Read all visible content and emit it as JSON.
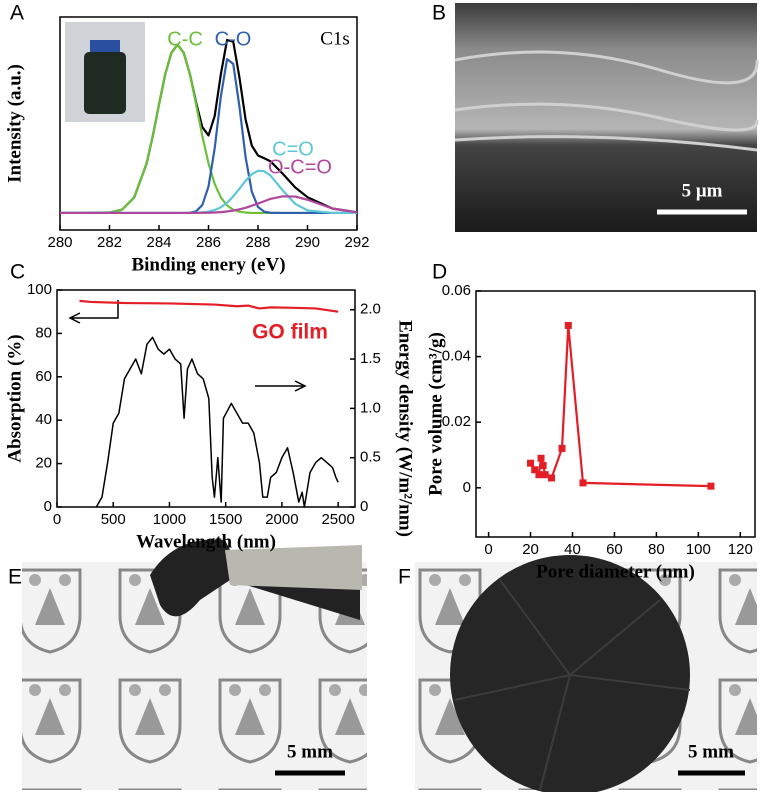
{
  "panel_labels": [
    "A",
    "B",
    "C",
    "D",
    "E",
    "F"
  ],
  "scale_bars": {
    "B": "5 μm",
    "E": "5 mm",
    "F": "5 mm"
  },
  "chart_data": [
    {
      "type": "line",
      "xlabel": "Binding enery (eV)",
      "ylabel": "Intensity (a.u.)",
      "annotation": "C1s",
      "xlim": [
        280,
        292
      ],
      "xticks": [
        280,
        282,
        284,
        286,
        288,
        290,
        292
      ],
      "ylim": [
        0,
        100
      ],
      "x": [
        280,
        281,
        282,
        282.5,
        283,
        283.5,
        283.75,
        284,
        284.25,
        284.5,
        284.75,
        285,
        285.25,
        285.5,
        285.75,
        286,
        286.25,
        286.5,
        286.75,
        287,
        287.25,
        287.5,
        287.75,
        288,
        288.25,
        288.5,
        289,
        289.5,
        290,
        291,
        292
      ],
      "series": [
        {
          "color": "#000000",
          "values": [
            8,
            8,
            8.2,
            9.5,
            15.3,
            31.3,
            44.2,
            58.9,
            73,
            83.2,
            87,
            83.2,
            73.1,
            59.8,
            48.3,
            44.4,
            53.5,
            73.2,
            89.2,
            88.4,
            71.6,
            51.8,
            39.6,
            35,
            33.7,
            32.3,
            26.4,
            20,
            15.4,
            10.1,
            8.3
          ]
        },
        {
          "name": "C-C",
          "color": "#6cbf3a",
          "values": [
            8,
            8,
            8.2,
            9.5,
            15.3,
            31.3,
            44.2,
            58.9,
            73,
            83.2,
            87,
            83.2,
            73,
            58.9,
            44.2,
            31.3,
            21.6,
            15.3,
            11.5,
            9.5,
            8.6,
            8.2,
            8,
            8,
            8,
            8,
            8,
            8,
            8,
            8,
            8
          ]
        },
        {
          "name": "C-O",
          "color": "#2f5fad",
          "values": [
            8,
            8,
            8,
            8,
            8,
            8,
            8,
            8,
            8,
            8,
            8,
            8,
            8.1,
            8.8,
            11.7,
            20.4,
            38.3,
            62.8,
            80.2,
            78,
            57.9,
            34.1,
            18,
            10.8,
            8.6,
            8.1,
            8,
            8,
            8,
            8,
            8
          ]
        },
        {
          "name": "C=O",
          "color": "#5cc7d6",
          "values": [
            8,
            8,
            8,
            8,
            8,
            8,
            8,
            8,
            8,
            8,
            8,
            8,
            8,
            8.1,
            8.3,
            8.6,
            9.4,
            10.7,
            12.8,
            15.8,
            19.4,
            23.1,
            26.2,
            27.8,
            27.6,
            25.6,
            18.6,
            12.3,
            9.2,
            8,
            8
          ]
        },
        {
          "name": "O-C=O",
          "color": "#b0479e",
          "values": [
            8,
            8,
            8,
            8,
            8,
            8,
            8,
            8,
            8,
            8,
            8,
            8,
            8,
            8,
            8.1,
            8.1,
            8.2,
            8.4,
            8.7,
            9.1,
            9.7,
            10.4,
            11.4,
            12.4,
            13.5,
            14.6,
            15.8,
            15.7,
            14.2,
            10.1,
            8.3
          ]
        }
      ]
    },
    {
      "type": "line",
      "xlabel": "Wavelength (nm)",
      "ylabel": "Absorption (%)",
      "y2label": "Energy density (W/m²/nm)",
      "xlim": [
        0,
        2650
      ],
      "xticks": [
        0,
        500,
        1000,
        1500,
        2000,
        2500
      ],
      "ylim": [
        0,
        100
      ],
      "yticks": [
        0,
        20,
        40,
        60,
        80,
        100
      ],
      "y2lim": [
        0,
        2.2
      ],
      "y2ticks": [
        0,
        0.5,
        {
          "value": 1,
          "label": "1.0"
        },
        1.5,
        {
          "value": 2,
          "label": "2.0"
        }
      ],
      "series": [
        {
          "name": "GO film",
          "color": "#e41e26",
          "x": [
            200,
            300,
            600,
            1000,
            1400,
            1600,
            1700,
            1800,
            1900,
            2100,
            2300,
            2500
          ],
          "values": [
            95,
            94.5,
            94,
            93.8,
            93.3,
            92.5,
            92.8,
            91.5,
            92,
            91.8,
            91.5,
            90
          ]
        },
        {
          "axis": "y2",
          "color": "#000000",
          "x": [
            350,
            400,
            450,
            500,
            550,
            600,
            650,
            700,
            750,
            800,
            850,
            900,
            950,
            1000,
            1050,
            1100,
            1130,
            1160,
            1200,
            1250,
            1300,
            1350,
            1380,
            1400,
            1430,
            1460,
            1480,
            1550,
            1600,
            1650,
            1700,
            1750,
            1800,
            1830,
            1870,
            1900,
            1950,
            2000,
            2050,
            2100,
            2150,
            2180,
            2200,
            2250,
            2300,
            2350,
            2400,
            2450,
            2480,
            2500
          ],
          "values": [
            0,
            0.1,
            0.45,
            0.85,
            0.95,
            1.3,
            1.4,
            1.5,
            1.35,
            1.65,
            1.72,
            1.6,
            1.55,
            1.6,
            1.5,
            1.45,
            0.9,
            1.4,
            1.5,
            1.35,
            1.3,
            1.1,
            0.3,
            0.1,
            0.5,
            0.05,
            0.9,
            1.05,
            0.95,
            0.85,
            0.85,
            0.75,
            0.45,
            0.1,
            0.1,
            0.3,
            0.35,
            0.5,
            0.6,
            0.35,
            0.05,
            0.15,
            0,
            0.35,
            0.45,
            0.5,
            0.45,
            0.4,
            0.3,
            0.25
          ]
        }
      ]
    },
    {
      "type": "line",
      "markers": true,
      "xlabel": "Pore diameter (nm)",
      "ylabel": "Pore volume (cm³/g)",
      "xlim": [
        -6,
        127
      ],
      "xticks": [
        0,
        20,
        40,
        60,
        80,
        100,
        120
      ],
      "ylim": [
        -0.015,
        0.06
      ],
      "yticks": [
        0,
        0.02,
        0.04,
        0.06
      ],
      "x": [
        20,
        22,
        24,
        25,
        26,
        27,
        30,
        35,
        38,
        45,
        106
      ],
      "series": [
        {
          "color": "#e41e26",
          "values": [
            0.0075,
            0.0055,
            0.004,
            0.009,
            0.0068,
            0.004,
            0.003,
            0.012,
            0.0495,
            0.0015,
            0.0005
          ]
        }
      ]
    }
  ]
}
